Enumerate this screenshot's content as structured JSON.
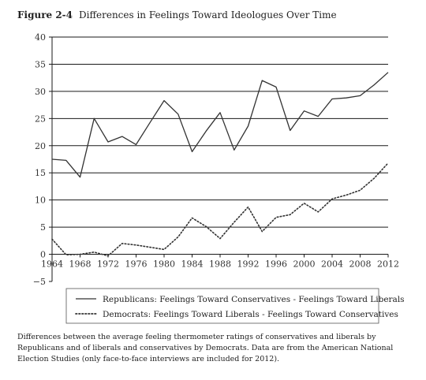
{
  "figure": {
    "number": "Figure 2-4",
    "title": "Differences in Feelings Toward Ideologues Over Time",
    "caption": "Differences between the average feeling thermometer ratings of conservatives and liberals by Republicans and of liberals and conservatives by Democrats. Data are from the American National Election Studies (only face-to-face interviews are included for 2012)."
  },
  "chart_data": {
    "type": "line",
    "title": "Differences in Feelings Toward Ideologues Over Time",
    "xlabel": "",
    "ylabel": "",
    "xlim": [
      1964,
      2012
    ],
    "ylim": [
      -5,
      40
    ],
    "grid": true,
    "x_ticks": [
      "1964",
      "1968",
      "1972",
      "1976",
      "1980",
      "1984",
      "1988",
      "1992",
      "1996",
      "2000",
      "2004",
      "2008",
      "2012"
    ],
    "y_ticks": [
      "40",
      "35",
      "30",
      "25",
      "20",
      "15",
      "10",
      "5",
      "0",
      "−5"
    ],
    "legend_position": "bottom",
    "series": [
      {
        "name": "Republicans: Feelings Toward Conservatives - Feelings Toward Liberals",
        "style": "solid",
        "color": "#333333",
        "x": [
          1964,
          1966,
          1968,
          1970,
          1972,
          1974,
          1976,
          1978,
          1980,
          1982,
          1984,
          1986,
          1988,
          1990,
          1992,
          1994,
          1996,
          1998,
          2000,
          2002,
          2004,
          2006,
          2008,
          2010,
          2012
        ],
        "values": [
          17.5,
          17.3,
          14.2,
          25.0,
          20.7,
          21.7,
          20.2,
          24.3,
          28.3,
          25.8,
          18.9,
          22.7,
          26.1,
          19.2,
          23.6,
          32.0,
          30.8,
          22.8,
          26.4,
          25.4,
          28.6,
          28.8,
          29.2,
          31.2,
          33.5
        ]
      },
      {
        "name": "Democrats: Feelings Toward Liberals - Feelings Toward Conservatives",
        "style": "dotted",
        "color": "#333333",
        "x": [
          1964,
          1966,
          1968,
          1970,
          1972,
          1974,
          1976,
          1978,
          1980,
          1982,
          1984,
          1986,
          1988,
          1990,
          1992,
          1994,
          1996,
          1998,
          2000,
          2002,
          2004,
          2006,
          2008,
          2010,
          2012
        ],
        "values": [
          2.8,
          -0.1,
          0.0,
          0.4,
          -0.3,
          2.0,
          1.7,
          1.3,
          0.9,
          3.2,
          6.7,
          5.1,
          2.9,
          5.9,
          8.7,
          4.2,
          6.8,
          7.3,
          9.4,
          7.8,
          10.2,
          10.9,
          11.8,
          14.0,
          16.8
        ]
      }
    ]
  }
}
